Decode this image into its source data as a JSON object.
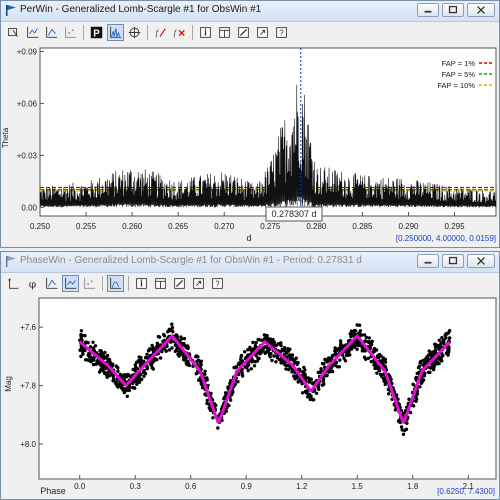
{
  "perwin": {
    "title": "PerWin - Generalized Lomb-Scargle #1 for ObsWin #1",
    "toolbar_icons": [
      "cursor-icon",
      "chart-axes-icon",
      "chart-line-icon",
      "chart-points-icon",
      "bold-p-icon",
      "peaks-icon",
      "target-icon",
      "fit-icon",
      "clear-fit-icon",
      "info-icon",
      "table-icon",
      "edit-icon",
      "export-icon",
      "help-icon"
    ],
    "y_axis_label": "Theta",
    "x_axis_label": "d",
    "y_ticks": [
      "+0.09",
      "+0.06",
      "+0.03",
      "0.00"
    ],
    "x_ticks": [
      "0.250",
      "0.255",
      "0.260",
      "0.265",
      "0.270",
      "0.275",
      "0.280",
      "0.285",
      "0.290",
      "0.295"
    ],
    "cursor_label": "0.278307 d",
    "range_label": "[0.250000, 4.00000, 0.0159]",
    "legend": [
      {
        "label": "FAP = 1%",
        "color": "#e00000"
      },
      {
        "label": "FAP = 5%",
        "color": "#00b000"
      },
      {
        "label": "FAP = 10%",
        "color": "#e0b000"
      }
    ]
  },
  "phasewin": {
    "title": "PhaseWin - Generalized Lomb-Scargle #1 for ObsWin #1 - Period: 0.27831 d",
    "toolbar_icons": [
      "axes-icon",
      "phi-icon",
      "chart-line-icon",
      "chart-points-icon",
      "chart-scatter-icon",
      "fit-curve-icon",
      "info-icon",
      "table-icon",
      "edit-icon",
      "export-icon",
      "help-icon"
    ],
    "y_axis_label": "Mag",
    "x_axis_label": "Phase",
    "y_ticks": [
      "+7.6",
      "+7.8",
      "+8.0"
    ],
    "x_ticks": [
      "0.0",
      "0.3",
      "0.6",
      "0.9",
      "1.2",
      "1.5",
      "1.8",
      "2.1"
    ],
    "range_label": "[0.6250, 7.4300]"
  },
  "chart_data": [
    {
      "type": "line",
      "title": "",
      "xlabel": "d",
      "ylabel": "Theta",
      "xlim": [
        0.25,
        0.2995
      ],
      "ylim": [
        -0.005,
        0.092
      ],
      "grid": false,
      "legend_position": "top-right",
      "series": [
        {
          "name": "",
          "x": [
            0.25,
            0.255,
            0.26,
            0.265,
            0.27,
            0.2735,
            0.275,
            0.2783,
            0.28,
            0.285,
            0.29,
            0.295,
            0.2995
          ],
          "values": [
            0.012,
            0.015,
            0.025,
            0.016,
            0.022,
            0.013,
            0.027,
            0.085,
            0.025,
            0.019,
            0.017,
            0.012,
            0.01
          ]
        },
        {
          "name": "FAP = 1%",
          "x": [
            0.25,
            0.2995
          ],
          "values": [
            0.0115,
            0.0115
          ]
        },
        {
          "name": "FAP = 5%",
          "x": [
            0.25,
            0.2995
          ],
          "values": [
            0.0103,
            0.0103
          ]
        },
        {
          "name": "FAP = 10%",
          "x": [
            0.25,
            0.2995
          ],
          "values": [
            0.0095,
            0.0095
          ]
        }
      ],
      "peak_period": 0.278307
    },
    {
      "type": "scatter",
      "title": "",
      "xlabel": "Phase",
      "ylabel": "Mag",
      "xlim": [
        -0.22,
        2.25
      ],
      "ylim": [
        7.5,
        8.12
      ],
      "y_inverted": true,
      "grid": false,
      "series": [
        {
          "name": "",
          "x": [
            0.0,
            0.15,
            0.25,
            0.35,
            0.5,
            0.65,
            0.75,
            0.85,
            1.0,
            1.15,
            1.25,
            1.35,
            1.5,
            1.65,
            1.75,
            1.85,
            2.0
          ],
          "values": [
            7.65,
            7.73,
            7.8,
            7.73,
            7.63,
            7.75,
            7.93,
            7.75,
            7.65,
            7.73,
            7.82,
            7.73,
            7.63,
            7.75,
            7.93,
            7.75,
            7.65
          ]
        }
      ]
    }
  ]
}
